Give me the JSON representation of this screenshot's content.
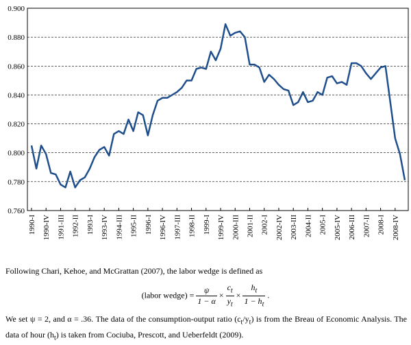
{
  "chart_data": {
    "type": "line",
    "categories": [
      "1990-I",
      null,
      null,
      "1990-IV",
      null,
      null,
      "1991-III",
      null,
      null,
      "1992-II",
      null,
      null,
      "1993-I",
      null,
      null,
      "1993-IV",
      null,
      null,
      "1994-III",
      null,
      null,
      "1995-II",
      null,
      null,
      "1996-I",
      null,
      null,
      "1996-IV",
      null,
      null,
      "1997-III",
      null,
      null,
      "1998-II",
      null,
      null,
      "1999-I",
      null,
      null,
      "1999-IV",
      null,
      null,
      "2000-III",
      null,
      null,
      "2001-II",
      null,
      null,
      "2002-I",
      null,
      null,
      "2002-IV",
      null,
      null,
      "2003-III",
      null,
      null,
      "2004-II",
      null,
      null,
      "2005-I",
      null,
      null,
      "2005-IV",
      null,
      null,
      "2006-III",
      null,
      null,
      "2007-II",
      null,
      null,
      "2008-I",
      null,
      null,
      "2008-IV",
      null,
      null
    ],
    "values": [
      0.805,
      0.789,
      0.805,
      0.799,
      0.786,
      0.785,
      0.778,
      0.776,
      0.787,
      0.776,
      0.781,
      0.783,
      0.789,
      0.797,
      0.802,
      0.804,
      0.798,
      0.813,
      0.815,
      0.813,
      0.823,
      0.815,
      0.828,
      0.826,
      0.812,
      0.826,
      0.836,
      0.838,
      0.838,
      0.84,
      0.842,
      0.845,
      0.85,
      0.85,
      0.858,
      0.859,
      0.858,
      0.87,
      0.864,
      0.872,
      0.889,
      0.881,
      0.883,
      0.884,
      0.88,
      0.861,
      0.861,
      0.859,
      0.849,
      0.854,
      0.851,
      0.847,
      0.844,
      0.843,
      0.833,
      0.835,
      0.842,
      0.835,
      0.836,
      0.842,
      0.84,
      0.852,
      0.853,
      0.848,
      0.849,
      0.847,
      0.862,
      0.862,
      0.86,
      0.855,
      0.851,
      0.855,
      0.859,
      0.86,
      0.835,
      0.81,
      0.799,
      0.781
    ],
    "color": "#1f4e8c",
    "ylim": [
      0.76,
      0.9
    ],
    "yticks": [
      {
        "value": 0.76,
        "label": "0.760"
      },
      {
        "value": 0.78,
        "label": "0.780"
      },
      {
        "value": 0.8,
        "label": "0.800"
      },
      {
        "value": 0.82,
        "label": "0.820"
      },
      {
        "value": 0.84,
        "label": "0.840"
      },
      {
        "value": 0.86,
        "label": "0.860"
      },
      {
        "value": 0.88,
        "label": "0.880"
      },
      {
        "value": 0.9,
        "label": "0.900"
      }
    ],
    "grid": true
  },
  "text": {
    "intro": "Following Chari, Kehoe, and McGrattan (2007), the labor wedge is defined as",
    "formula": {
      "lhs": "(labor wedge) =",
      "operator": "×",
      "end": ".",
      "fractions": [
        {
          "num": "ψ",
          "den": "1 − α"
        },
        {
          "num": "c",
          "num_sub": "t",
          "den": "y",
          "den_sub": "t"
        },
        {
          "num": "h",
          "num_sub": "t",
          "den": "1 − h",
          "den_sub": "t"
        }
      ]
    },
    "closing": [
      "We set ψ = 2, and α = .36.  The data of the consumption-output ratio (c",
      "t",
      "/y",
      "t",
      ") is from the Breau of Economic Analysis.  The data of hour (h",
      "t",
      ") is taken from Cociuba, Prescott, and Ueberfeldt (2009)."
    ]
  }
}
